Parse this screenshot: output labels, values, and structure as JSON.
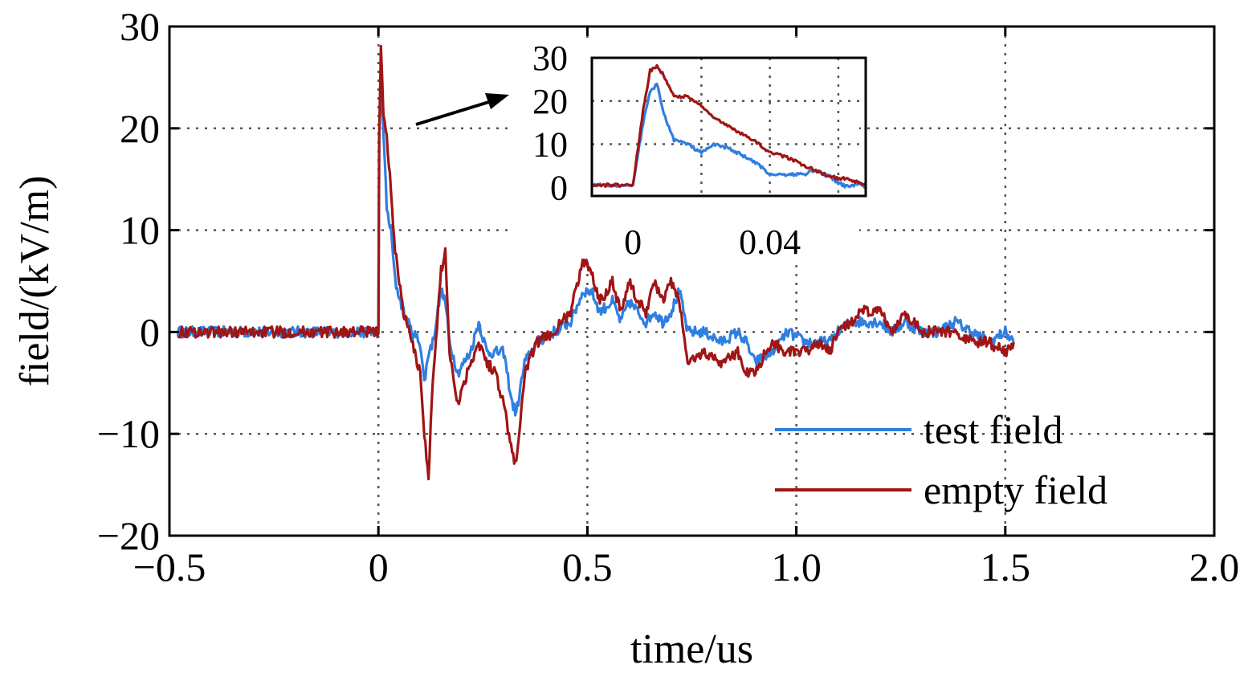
{
  "chart_data": [
    {
      "type": "line",
      "title": "",
      "xlabel": "time/us",
      "ylabel": "field/(kV/m)",
      "xlim": [
        -0.5,
        2.0
      ],
      "ylim": [
        -20,
        30
      ],
      "xticks": [
        -0.5,
        0,
        0.5,
        1.0,
        1.5,
        2.0
      ],
      "xtick_labels": [
        "−0.5",
        "0",
        "0.5",
        "1.0",
        "1.5",
        "2.0"
      ],
      "yticks": [
        -20,
        -10,
        0,
        10,
        20,
        30
      ],
      "ytick_labels": [
        "−20",
        "−10",
        "0",
        "10",
        "20",
        "30"
      ],
      "grid": true,
      "grid_style": "dotted",
      "legend_position": "bottom-right",
      "series": [
        {
          "name": "test field",
          "color": "#2f7fe0",
          "x": [
            -0.48,
            0.0,
            0.002,
            0.006,
            0.012,
            0.02,
            0.03,
            0.04,
            0.06,
            0.08,
            0.1,
            0.11,
            0.12,
            0.13,
            0.15,
            0.16,
            0.17,
            0.19,
            0.22,
            0.24,
            0.26,
            0.28,
            0.3,
            0.32,
            0.33,
            0.35,
            0.38,
            0.42,
            0.46,
            0.49,
            0.51,
            0.53,
            0.56,
            0.58,
            0.6,
            0.62,
            0.64,
            0.66,
            0.68,
            0.7,
            0.72,
            0.74,
            0.78,
            0.82,
            0.86,
            0.88,
            0.9,
            0.94,
            0.98,
            1.02,
            1.05,
            1.08,
            1.1,
            1.13,
            1.16,
            1.2,
            1.23,
            1.26,
            1.3,
            1.34,
            1.38,
            1.42,
            1.46,
            1.5,
            1.52
          ],
          "y": [
            0,
            0,
            19,
            24,
            20,
            12,
            10,
            5,
            2,
            0,
            -1,
            -5,
            -2,
            -1,
            4,
            3,
            -1,
            -4,
            -2,
            1,
            -2,
            -2,
            -2,
            -7,
            -8,
            -3,
            -1,
            0,
            1,
            4,
            4,
            2,
            3,
            1,
            3,
            2,
            1,
            2,
            1,
            2,
            4,
            0,
            0,
            -1,
            0,
            -1,
            -3,
            -2,
            0,
            -1,
            -1,
            -1,
            0,
            1,
            1,
            1,
            0,
            1,
            0,
            0,
            1,
            0,
            -1,
            0,
            -1
          ]
        },
        {
          "name": "empty field",
          "color": "#a01515",
          "x": [
            -0.48,
            0.0,
            0.002,
            0.006,
            0.012,
            0.02,
            0.03,
            0.04,
            0.06,
            0.08,
            0.1,
            0.11,
            0.12,
            0.13,
            0.15,
            0.16,
            0.17,
            0.19,
            0.22,
            0.24,
            0.26,
            0.28,
            0.3,
            0.32,
            0.33,
            0.35,
            0.38,
            0.42,
            0.46,
            0.49,
            0.51,
            0.53,
            0.56,
            0.58,
            0.6,
            0.62,
            0.64,
            0.66,
            0.68,
            0.7,
            0.72,
            0.74,
            0.78,
            0.82,
            0.86,
            0.88,
            0.9,
            0.94,
            0.98,
            1.02,
            1.05,
            1.08,
            1.1,
            1.13,
            1.16,
            1.2,
            1.23,
            1.26,
            1.3,
            1.34,
            1.38,
            1.42,
            1.46,
            1.5,
            1.52
          ],
          "y": [
            0,
            0,
            20,
            28,
            21,
            19,
            14,
            8,
            2,
            -1,
            -4,
            -10,
            -14,
            -5,
            6,
            8,
            -2,
            -7,
            -3,
            -1,
            -3,
            -4,
            -7,
            -12,
            -13,
            -4,
            -1,
            0,
            2,
            7,
            6,
            3,
            5,
            2,
            5,
            3,
            2,
            5,
            3,
            5,
            3,
            -3,
            -2,
            -3,
            -2,
            -4,
            -4,
            -1,
            -2,
            -2,
            -1,
            -2,
            0,
            1,
            2,
            2,
            0,
            2,
            0,
            0,
            0,
            -1,
            -1,
            -2,
            -1
          ]
        }
      ],
      "annotations": []
    },
    {
      "type": "line",
      "title": "",
      "xlabel": "",
      "ylabel": "",
      "xlim": [
        -0.012,
        0.068
      ],
      "ylim": [
        -2,
        30
      ],
      "xticks": [
        0,
        0.04
      ],
      "xtick_labels": [
        "0",
        "0.04"
      ],
      "yticks": [
        0,
        10,
        20,
        30
      ],
      "ytick_labels": [
        "0",
        "10",
        "20",
        "30"
      ],
      "grid": true,
      "grid_style": "dotted",
      "series": [
        {
          "name": "test field",
          "color": "#2f7fe0",
          "x": [
            -0.012,
            -0.004,
            0.0,
            0.003,
            0.005,
            0.007,
            0.009,
            0.012,
            0.016,
            0.02,
            0.024,
            0.028,
            0.033,
            0.037,
            0.04,
            0.045,
            0.05,
            0.053,
            0.056,
            0.06,
            0.063,
            0.066,
            0.068
          ],
          "y": [
            0.5,
            0.5,
            0.5,
            15,
            22,
            24,
            17,
            11,
            10,
            8,
            10,
            9,
            7,
            5,
            3,
            3,
            3,
            4,
            3,
            1,
            0,
            1,
            0
          ]
        },
        {
          "name": "empty field",
          "color": "#a01515",
          "x": [
            -0.012,
            -0.004,
            0.0,
            0.003,
            0.005,
            0.007,
            0.009,
            0.012,
            0.016,
            0.02,
            0.024,
            0.028,
            0.033,
            0.037,
            0.04,
            0.045,
            0.05,
            0.053,
            0.056,
            0.06,
            0.063,
            0.066,
            0.068
          ],
          "y": [
            0.5,
            0.5,
            0.5,
            18,
            27,
            28,
            26,
            21,
            21,
            19,
            16,
            14,
            12,
            10,
            8,
            7,
            5,
            4,
            3,
            2,
            2,
            1,
            0.5
          ]
        }
      ]
    }
  ]
}
